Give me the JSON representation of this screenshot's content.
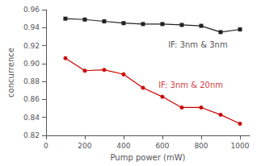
{
  "chart_data": {
    "type": "line",
    "x": [
      100,
      200,
      300,
      400,
      500,
      600,
      700,
      800,
      900,
      1000
    ],
    "series": [
      {
        "color": "#222222",
        "marker": "square",
        "values": [
          0.95,
          0.949,
          0.947,
          0.945,
          0.944,
          0.944,
          0.943,
          0.942,
          0.935,
          0.938
        ]
      },
      {
        "color": "#cc0000",
        "marker": "circle",
        "values": [
          0.906,
          0.892,
          0.893,
          0.888,
          0.873,
          0.863,
          0.851,
          0.851,
          0.843,
          0.833
        ]
      }
    ],
    "annotations": [
      {
        "text": "IF: 3nm & 3nm",
        "x": 630,
        "y": 0.921,
        "color": "#222222"
      },
      {
        "text": "IF: 3nm & 20nm",
        "x": 580,
        "y": 0.876,
        "color": "#cc0000"
      }
    ],
    "xlabel": "Pump power (mW)",
    "ylabel": "concurrence",
    "xlim": [
      0,
      1050
    ],
    "ylim": [
      0.82,
      0.96
    ],
    "xticks": [
      0,
      200,
      400,
      600,
      800,
      1000
    ],
    "yticks": [
      0.82,
      0.84,
      0.86,
      0.88,
      {
        "value": 0.9,
        "label": "0.90"
      },
      0.92,
      0.94,
      0.96
    ],
    "grid": false
  }
}
